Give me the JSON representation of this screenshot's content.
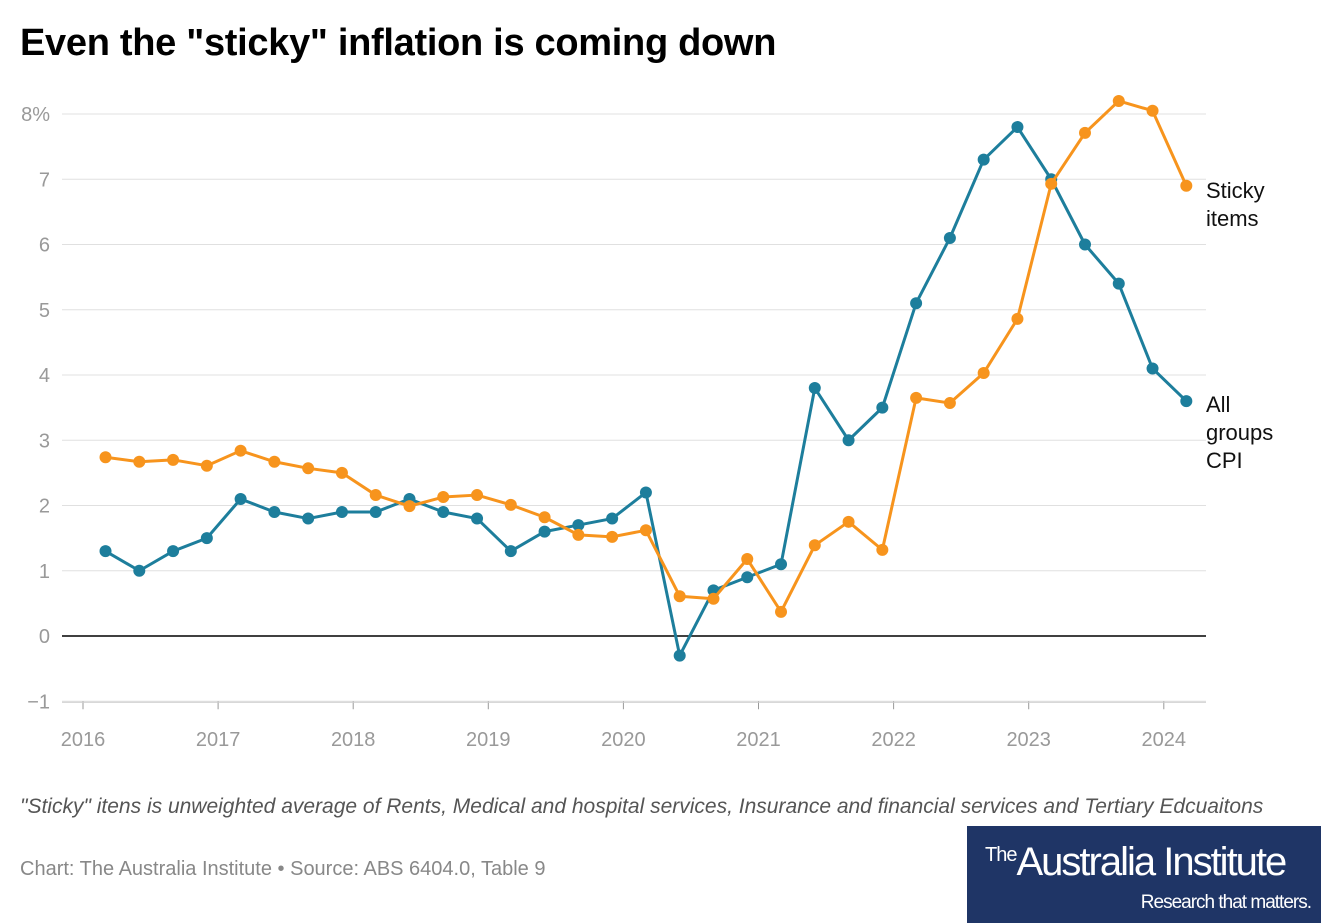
{
  "title": "Even the \"sticky\" inflation is coming down",
  "note": "\"Sticky\" itens is unweighted average of Rents, Medical and hospital services, Insurance and financial services and Tertiary Edcuaitons",
  "credit": "Chart: The Australia Institute • Source: ABS 6404.0, Table 9",
  "logo": {
    "line1_small": "The",
    "line1": "Australia Institute",
    "line2": "Research that matters."
  },
  "chart_data": {
    "type": "line",
    "title": "Even the \"sticky\" inflation is coming down",
    "xlabel": "",
    "ylabel": "",
    "ylim": [
      -1,
      8.3
    ],
    "y_ticks": [
      "−1",
      "0",
      "1",
      "2",
      "3",
      "4",
      "5",
      "6",
      "7",
      "8%"
    ],
    "y_tick_values": [
      -1,
      0,
      1,
      2,
      3,
      4,
      5,
      6,
      7,
      8
    ],
    "x_ticks": [
      "2016",
      "2017",
      "2018",
      "2019",
      "2020",
      "2021",
      "2022",
      "2023",
      "2024"
    ],
    "grid": true,
    "legend": "direct labels at line ends (right)",
    "x": [
      "2016-03",
      "2016-06",
      "2016-09",
      "2016-12",
      "2017-03",
      "2017-06",
      "2017-09",
      "2017-12",
      "2018-03",
      "2018-06",
      "2018-09",
      "2018-12",
      "2019-03",
      "2019-06",
      "2019-09",
      "2019-12",
      "2020-03",
      "2020-06",
      "2020-09",
      "2020-12",
      "2021-03",
      "2021-06",
      "2021-09",
      "2021-12",
      "2022-03",
      "2022-06",
      "2022-09",
      "2022-12",
      "2023-03",
      "2023-06",
      "2023-09",
      "2023-12",
      "2024-03"
    ],
    "series": [
      {
        "name": "Sticky items",
        "label_lines": [
          "Sticky",
          "items"
        ],
        "color": "#f7941d",
        "values": [
          2.74,
          2.67,
          2.7,
          2.61,
          2.84,
          2.67,
          2.57,
          2.5,
          2.16,
          1.99,
          2.13,
          2.16,
          2.01,
          1.82,
          1.55,
          1.52,
          1.62,
          0.61,
          0.57,
          1.18,
          0.37,
          1.39,
          1.75,
          1.32,
          3.65,
          3.57,
          4.03,
          4.86,
          6.93,
          7.71,
          8.2,
          8.05,
          6.9
        ]
      },
      {
        "name": "All groups CPI",
        "label_lines": [
          "All",
          "groups",
          "CPI"
        ],
        "color": "#1d7e9c",
        "values": [
          1.3,
          1.0,
          1.3,
          1.5,
          2.1,
          1.9,
          1.8,
          1.9,
          1.9,
          2.1,
          1.9,
          1.8,
          1.3,
          1.6,
          1.7,
          1.8,
          2.2,
          -0.3,
          0.7,
          0.9,
          1.1,
          3.8,
          3.0,
          3.5,
          5.1,
          6.1,
          7.3,
          7.8,
          7.0,
          6.0,
          5.4,
          4.1,
          3.6
        ]
      }
    ]
  }
}
